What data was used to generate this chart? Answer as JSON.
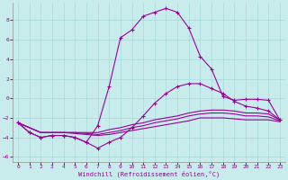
{
  "xlabel": "Windchill (Refroidissement éolien,°C)",
  "background_color": "#c8ecec",
  "grid_color": "#a8d8d8",
  "line_color": "#990099",
  "xlim": [
    -0.5,
    23.5
  ],
  "ylim": [
    -6.5,
    9.8
  ],
  "xticks": [
    0,
    1,
    2,
    3,
    4,
    5,
    6,
    7,
    8,
    9,
    10,
    11,
    12,
    13,
    14,
    15,
    16,
    17,
    18,
    19,
    20,
    21,
    22,
    23
  ],
  "yticks": [
    -6,
    -4,
    -2,
    0,
    2,
    4,
    6,
    8
  ],
  "line_peak_x": [
    0,
    1,
    2,
    3,
    4,
    5,
    6,
    7,
    8,
    9,
    10,
    11,
    12,
    13,
    14,
    15,
    16,
    17,
    18,
    19,
    20,
    21,
    22,
    23
  ],
  "line_peak_y": [
    -2.5,
    -3.5,
    -4.0,
    -3.8,
    -3.8,
    -4.0,
    -4.5,
    -2.8,
    1.2,
    6.2,
    7.0,
    8.4,
    8.8,
    9.2,
    8.8,
    7.2,
    4.3,
    3.0,
    0.2,
    -0.2,
    -0.1,
    -0.1,
    -0.2,
    -2.2
  ],
  "line_mid_x": [
    0,
    1,
    2,
    3,
    4,
    5,
    6,
    7,
    8,
    9,
    10,
    11,
    12,
    13,
    14,
    15,
    16,
    17,
    18,
    19,
    20,
    21,
    22,
    23
  ],
  "line_mid_y": [
    -2.5,
    -3.5,
    -4.0,
    -3.8,
    -3.8,
    -4.0,
    -4.5,
    -5.1,
    -4.5,
    -4.0,
    -3.0,
    -1.8,
    -0.5,
    0.5,
    1.2,
    1.5,
    1.5,
    1.0,
    0.5,
    -0.3,
    -0.8,
    -1.0,
    -1.3,
    -2.2
  ],
  "line_flat1_x": [
    0,
    1,
    2,
    3,
    4,
    5,
    6,
    7,
    8,
    9,
    10,
    11,
    12,
    13,
    14,
    15,
    16,
    17,
    18,
    19,
    20,
    21,
    22,
    23
  ],
  "line_flat1_y": [
    -2.5,
    -3.0,
    -3.5,
    -3.5,
    -3.5,
    -3.5,
    -3.5,
    -3.5,
    -3.2,
    -3.0,
    -2.7,
    -2.5,
    -2.2,
    -2.0,
    -1.8,
    -1.5,
    -1.3,
    -1.2,
    -1.2,
    -1.3,
    -1.5,
    -1.5,
    -1.6,
    -2.2
  ],
  "line_flat2_x": [
    0,
    1,
    2,
    3,
    4,
    5,
    6,
    7,
    8,
    9,
    10,
    11,
    12,
    13,
    14,
    15,
    16,
    17,
    18,
    19,
    20,
    21,
    22,
    23
  ],
  "line_flat2_y": [
    -2.5,
    -3.0,
    -3.5,
    -3.5,
    -3.5,
    -3.5,
    -3.6,
    -3.7,
    -3.5,
    -3.3,
    -3.0,
    -2.8,
    -2.5,
    -2.3,
    -2.1,
    -1.8,
    -1.6,
    -1.5,
    -1.5,
    -1.6,
    -1.8,
    -1.8,
    -1.9,
    -2.3
  ],
  "line_flat3_x": [
    0,
    1,
    2,
    3,
    4,
    5,
    6,
    7,
    8,
    9,
    10,
    11,
    12,
    13,
    14,
    15,
    16,
    17,
    18,
    19,
    20,
    21,
    22,
    23
  ],
  "line_flat3_y": [
    -2.5,
    -3.0,
    -3.5,
    -3.5,
    -3.5,
    -3.6,
    -3.7,
    -3.8,
    -3.7,
    -3.5,
    -3.3,
    -3.1,
    -2.9,
    -2.7,
    -2.5,
    -2.3,
    -2.0,
    -2.0,
    -2.0,
    -2.1,
    -2.2,
    -2.2,
    -2.2,
    -2.4
  ]
}
